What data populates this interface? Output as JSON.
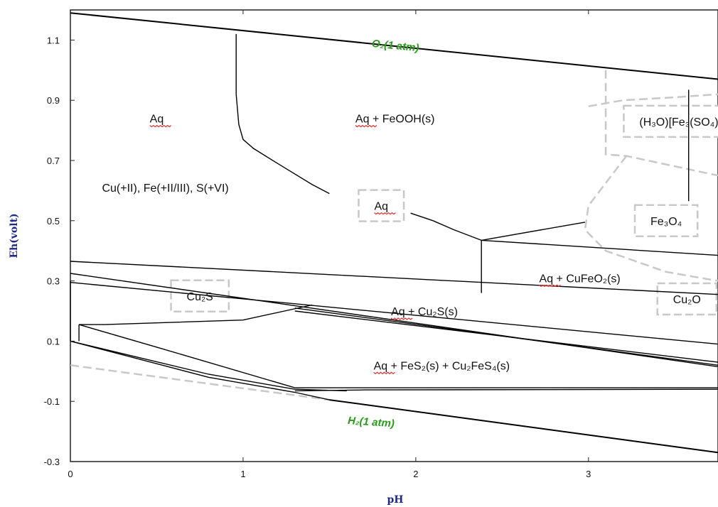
{
  "colors": {
    "axis_label": "#1f2a88",
    "gas_label": "#2b9a1c",
    "boundary": "#000000",
    "metastable": "#c8c8c8",
    "spell_underline": "#e03030"
  },
  "chart_data": {
    "type": "line",
    "xlabel": "pH",
    "ylabel": "Eh(volt)",
    "xlim": [
      0,
      3.75
    ],
    "ylim": [
      -0.3,
      1.2
    ],
    "xticks": [
      "0",
      "1",
      "2",
      "3"
    ],
    "yticks": [
      "1.1",
      "0.9",
      "0.7",
      "0.5",
      "0.3",
      "0.1",
      "-0.1",
      "-0.3"
    ],
    "regions": [
      {
        "label": "Aq",
        "x": 0.5,
        "y": 0.84
      },
      {
        "label": "Cu(+II), Fe(+II/III), S(+VI)",
        "x": 0.55,
        "y": 0.61
      },
      {
        "label": "Aq + FeOOH(s)",
        "x": 1.88,
        "y": 0.84
      },
      {
        "label": "(H₃O)[Fe₃(SO₄)₂(OH)₆]",
        "x": 3.63,
        "y": 0.83
      },
      {
        "label": "Aq",
        "x": 1.8,
        "y": 0.55
      },
      {
        "label": "Fe₃O₄",
        "x": 3.45,
        "y": 0.5
      },
      {
        "label": "Aq + CuFeO₂(s)",
        "x": 2.95,
        "y": 0.31
      },
      {
        "label": "Cu₂S",
        "x": 0.75,
        "y": 0.25
      },
      {
        "label": "Aq + Cu₂S(s)",
        "x": 2.05,
        "y": 0.2
      },
      {
        "label": "Cu₂O",
        "x": 3.57,
        "y": 0.24
      },
      {
        "label": "Aq + FeS₂(s) + Cu₂FeS₄(s)",
        "x": 2.15,
        "y": 0.02
      }
    ],
    "gas_lines": [
      {
        "label": "O₂(1 atm)",
        "x": [
          0,
          3.75
        ],
        "y": [
          1.19,
          0.97
        ]
      },
      {
        "label": "H₂(1 atm)",
        "x": [
          1.5,
          3.75
        ],
        "y": [
          -0.095,
          -0.27
        ]
      }
    ],
    "boundaries": [
      {
        "x": [
          0.96,
          0.96
        ],
        "y": [
          1.12,
          0.92
        ]
      },
      {
        "x": [
          0.96,
          0.975,
          1.0,
          1.06,
          1.2,
          1.4,
          1.5
        ],
        "y": [
          0.92,
          0.82,
          0.77,
          0.74,
          0.69,
          0.62,
          0.59
        ]
      },
      {
        "x": [
          1.97,
          2.1,
          2.22,
          2.38
        ],
        "y": [
          0.525,
          0.5,
          0.47,
          0.435
        ]
      },
      {
        "x": [
          2.38,
          2.38
        ],
        "y": [
          0.435,
          0.26
        ]
      },
      {
        "x": [
          2.38,
          3.75
        ],
        "y": [
          0.435,
          0.385
        ]
      },
      {
        "x": [
          2.38,
          2.98
        ],
        "y": [
          0.435,
          0.495
        ]
      },
      {
        "x": [
          3.58,
          3.58
        ],
        "y": [
          0.935,
          0.565
        ]
      },
      {
        "x": [
          0,
          3.75
        ],
        "y": [
          0.365,
          0.255
        ]
      },
      {
        "x": [
          0,
          3.75
        ],
        "y": [
          0.325,
          0.015
        ]
      },
      {
        "x": [
          0,
          3.75
        ],
        "y": [
          0.295,
          0.09
        ]
      },
      {
        "x": [
          0.2,
          1.0,
          1.4
        ],
        "y": [
          0.155,
          0.17,
          0.22
        ]
      },
      {
        "x": [
          0,
          0
        ],
        "y": [
          0.3,
          0.1
        ]
      },
      {
        "x": [
          0.05,
          0.05
        ],
        "y": [
          0.155,
          0.1
        ]
      },
      {
        "x": [
          0.05,
          0.2
        ],
        "y": [
          0.155,
          0.155
        ]
      },
      {
        "x": [
          0,
          0.8,
          1.3,
          1.5,
          3.75
        ],
        "y": [
          0.1,
          -0.02,
          -0.07,
          -0.095,
          -0.27
        ]
      },
      {
        "x": [
          0,
          0.8,
          1.3,
          1.6
        ],
        "y": [
          0.1,
          -0.01,
          -0.06,
          -0.065
        ]
      },
      {
        "x": [
          0.05,
          0.5,
          1.3
        ],
        "y": [
          0.155,
          0.08,
          -0.055
        ]
      },
      {
        "x": [
          1.3,
          1.7,
          3.75
        ],
        "y": [
          -0.055,
          -0.055,
          -0.055
        ]
      },
      {
        "x": [
          1.3,
          1.7,
          3.75
        ],
        "y": [
          -0.065,
          -0.062,
          -0.06
        ]
      },
      {
        "x": [
          1.3,
          3.75
        ],
        "y": [
          0.21,
          0.02
        ]
      },
      {
        "x": [
          1.3,
          3.75
        ],
        "y": [
          0.2,
          0.03
        ]
      }
    ],
    "metastable": [
      {
        "x": [
          0,
          1.5
        ],
        "y": [
          0.02,
          -0.095
        ]
      },
      {
        "x": [
          3.1,
          3.1,
          3.22,
          3.75
        ],
        "y": [
          1.0,
          0.72,
          0.715,
          0.65
        ]
      },
      {
        "x": [
          3.22,
          3.0,
          2.98,
          3.1,
          3.45,
          3.75
        ],
        "y": [
          0.715,
          0.55,
          0.47,
          0.4,
          0.33,
          0.3
        ]
      },
      {
        "x": [
          3.0,
          3.2,
          3.5,
          3.75
        ],
        "y": [
          0.88,
          0.9,
          0.91,
          0.92
        ]
      }
    ]
  }
}
